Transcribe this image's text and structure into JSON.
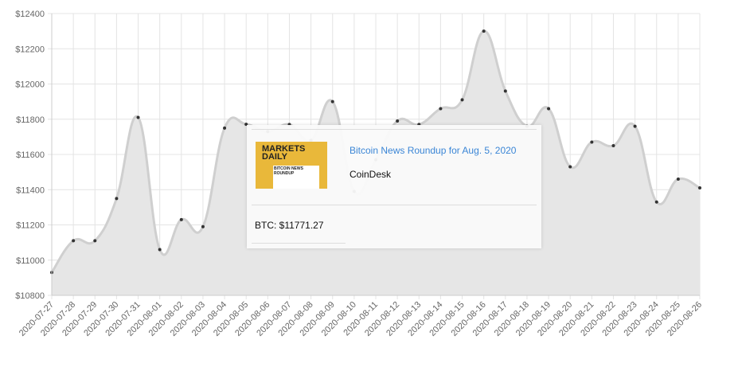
{
  "chart_data": {
    "type": "area",
    "categories": [
      "2020-07-27",
      "2020-07-28",
      "2020-07-29",
      "2020-07-30",
      "2020-07-31",
      "2020-08-01",
      "2020-08-02",
      "2020-08-03",
      "2020-08-04",
      "2020-08-05",
      "2020-08-06",
      "2020-08-07",
      "2020-08-08",
      "2020-08-09",
      "2020-08-10",
      "2020-08-11",
      "2020-08-12",
      "2020-08-13",
      "2020-08-14",
      "2020-08-15",
      "2020-08-16",
      "2020-08-17",
      "2020-08-18",
      "2020-08-19",
      "2020-08-20",
      "2020-08-21",
      "2020-08-22",
      "2020-08-23",
      "2020-08-24",
      "2020-08-25",
      "2020-08-26"
    ],
    "values": [
      10930,
      11110,
      11110,
      11350,
      11810,
      11060,
      11230,
      11190,
      11750,
      11771.27,
      11730,
      11770,
      11680,
      11900,
      11390,
      11570,
      11790,
      11770,
      11860,
      11910,
      12300,
      11960,
      11760,
      11860,
      11530,
      11670,
      11650,
      11760,
      11330,
      11460,
      11410
    ],
    "color": "#e6e6e6",
    "ylim": [
      10800,
      12400
    ],
    "yticks": [
      {
        "value": 10800,
        "label": "$10800"
      },
      {
        "value": 11000,
        "label": "$11000"
      },
      {
        "value": 11200,
        "label": "$11200"
      },
      {
        "value": 11400,
        "label": "$11400"
      },
      {
        "value": 11600,
        "label": "$11600"
      },
      {
        "value": 11800,
        "label": "$11800"
      },
      {
        "value": 12000,
        "label": "$12000"
      },
      {
        "value": 12200,
        "label": "$12200"
      },
      {
        "value": 12400,
        "label": "$12400"
      }
    ],
    "grid": true
  },
  "tooltip": {
    "image_title": "MARKETS DAILY",
    "image_subtitle": "BITCOIN NEWS ROUNDUP",
    "title": "Bitcoin News Roundup for Aug. 5, 2020",
    "source": "CoinDesk",
    "price": "BTC: $11771.27"
  }
}
